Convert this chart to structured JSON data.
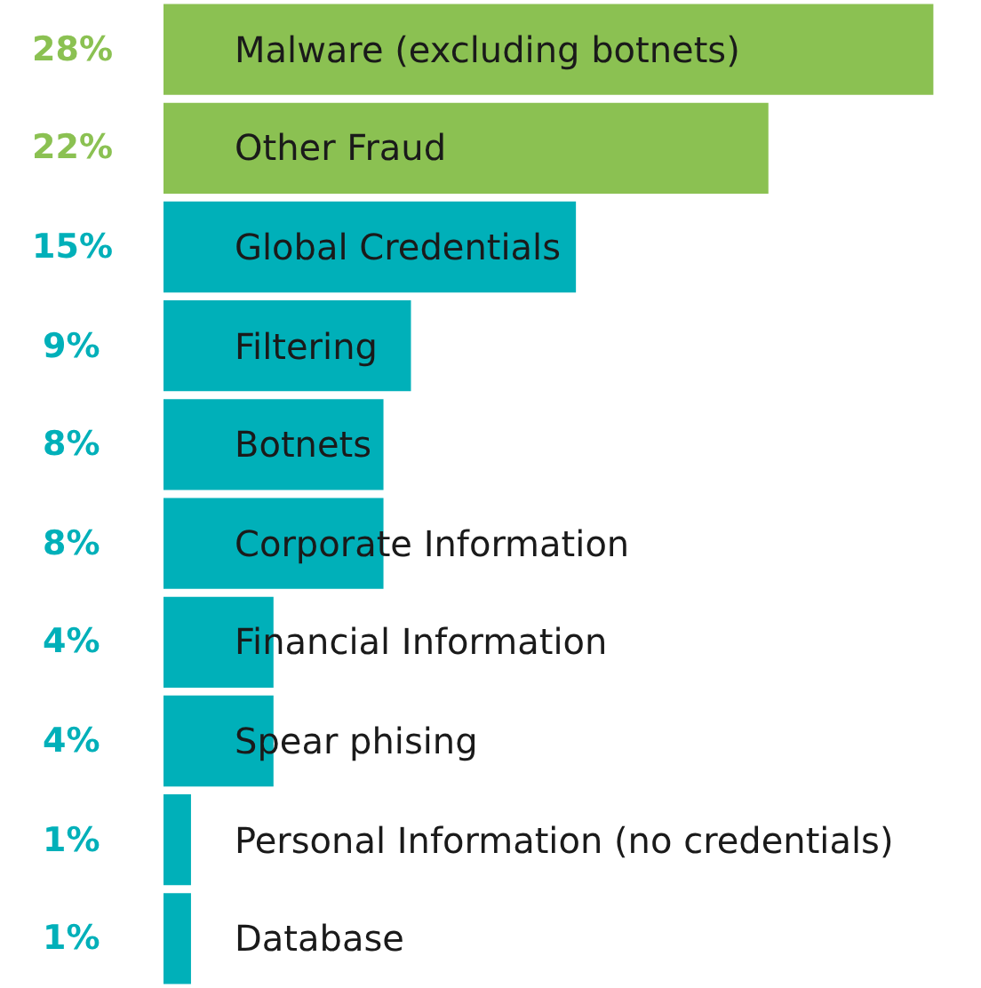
{
  "chart_data": {
    "type": "bar",
    "orientation": "horizontal",
    "categories": [
      "Malware (excluding botnets)",
      "Other Fraud",
      "Global Credentials",
      "Filtering",
      "Botnets",
      "Corporate Information",
      "Financial Information",
      "Spear phising",
      "Personal Information (no credentials)",
      "Database"
    ],
    "values": [
      28,
      22,
      15,
      9,
      8,
      8,
      4,
      4,
      1,
      1
    ],
    "value_labels": [
      "28%",
      "22%",
      "15%",
      "9%",
      "8%",
      "8%",
      "4%",
      "4%",
      "1%",
      "1%"
    ],
    "colors": [
      "#8bc152",
      "#8bc152",
      "#00b0b9",
      "#00b0b9",
      "#00b0b9",
      "#00b0b9",
      "#00b0b9",
      "#00b0b9",
      "#00b0b9",
      "#00b0b9"
    ],
    "legend": false
  }
}
